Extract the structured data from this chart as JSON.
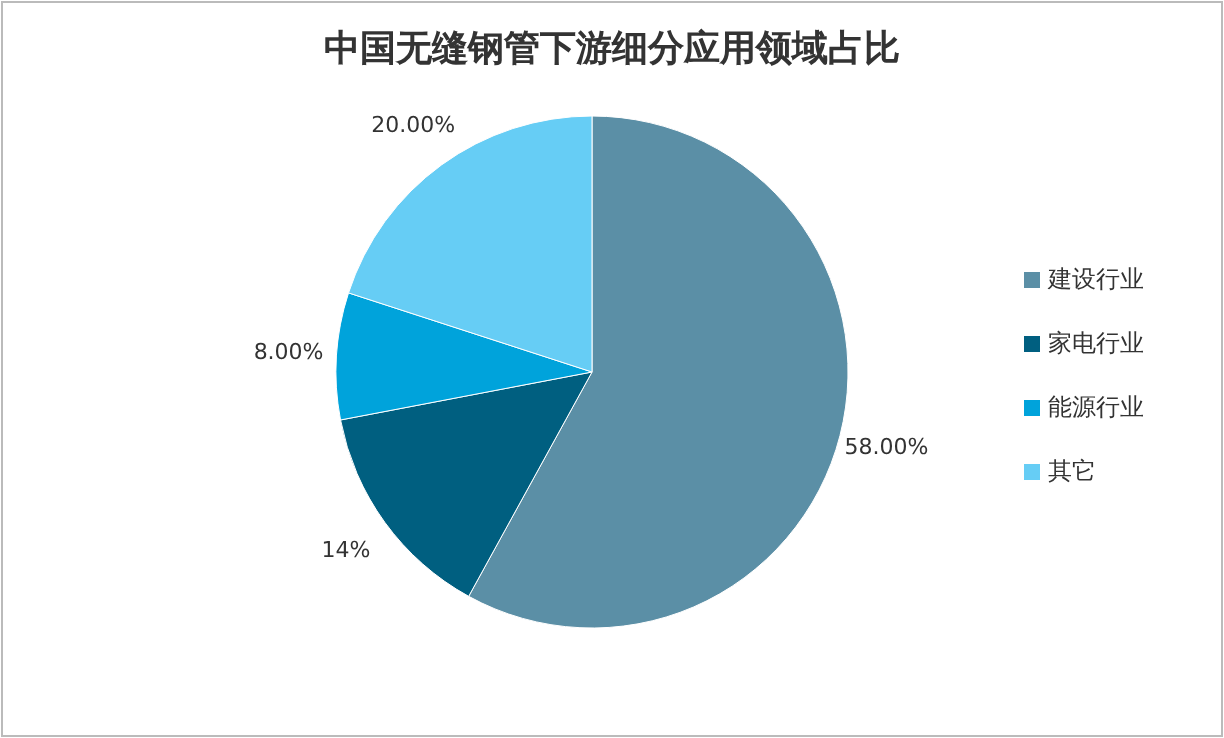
{
  "chart_data": {
    "type": "pie",
    "title": "中国无缝钢管下游细分应用领域占比",
    "categories": [
      "建设行业",
      "家电行业",
      "能源行业",
      "其它"
    ],
    "values": [
      58,
      14,
      8,
      20
    ],
    "colors": [
      "#5b8fa6",
      "#005f80",
      "#00a3db",
      "#66cdf5"
    ],
    "value_labels": [
      "58.00%",
      "14%",
      "8.00%",
      "20.00%"
    ],
    "legend": "right"
  }
}
